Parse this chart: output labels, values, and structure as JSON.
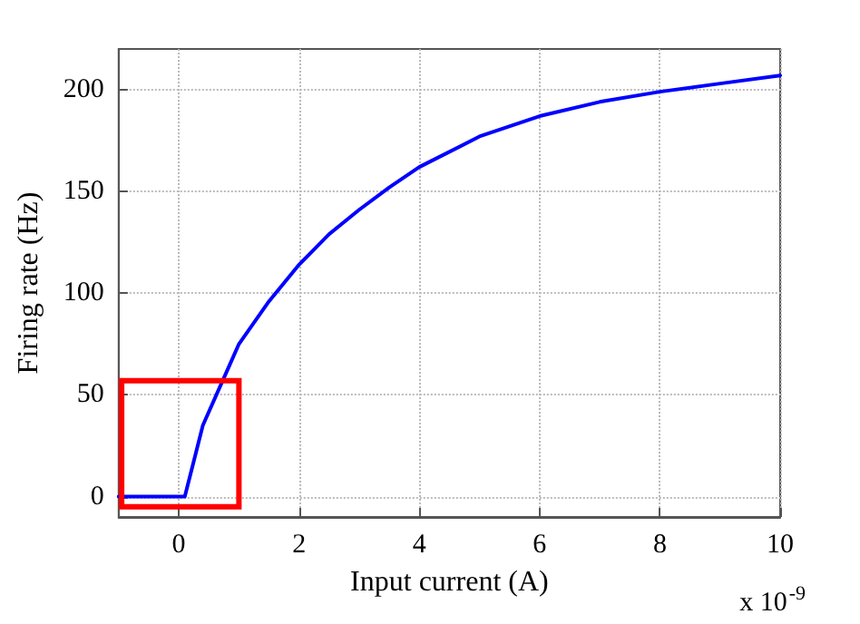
{
  "chart_data": {
    "type": "line",
    "xlabel": "Input current (A)",
    "ylabel": "Firing rate (Hz)",
    "annotations": [
      "x 10$^{-9}$"
    ],
    "x": [
      -1,
      0.1,
      0.4,
      0.7,
      1,
      1.5,
      2,
      2.5,
      3,
      3.5,
      4,
      5,
      6,
      7,
      8,
      9,
      10
    ],
    "series": [
      {
        "color": "#0000ff",
        "values": [
          0,
          0,
          35,
          55,
          75,
          96,
          114,
          129,
          141,
          152,
          162,
          177,
          187,
          194,
          199,
          203,
          207
        ]
      }
    ],
    "xlim": [
      -1,
      10
    ],
    "xticks": [
      0,
      2,
      4,
      6,
      8,
      10
    ],
    "ylim": [
      -10,
      220
    ],
    "yticks": [
      0,
      50,
      100,
      150,
      200
    ],
    "grid": true,
    "marker": "none",
    "line_style": "solid"
  }
}
